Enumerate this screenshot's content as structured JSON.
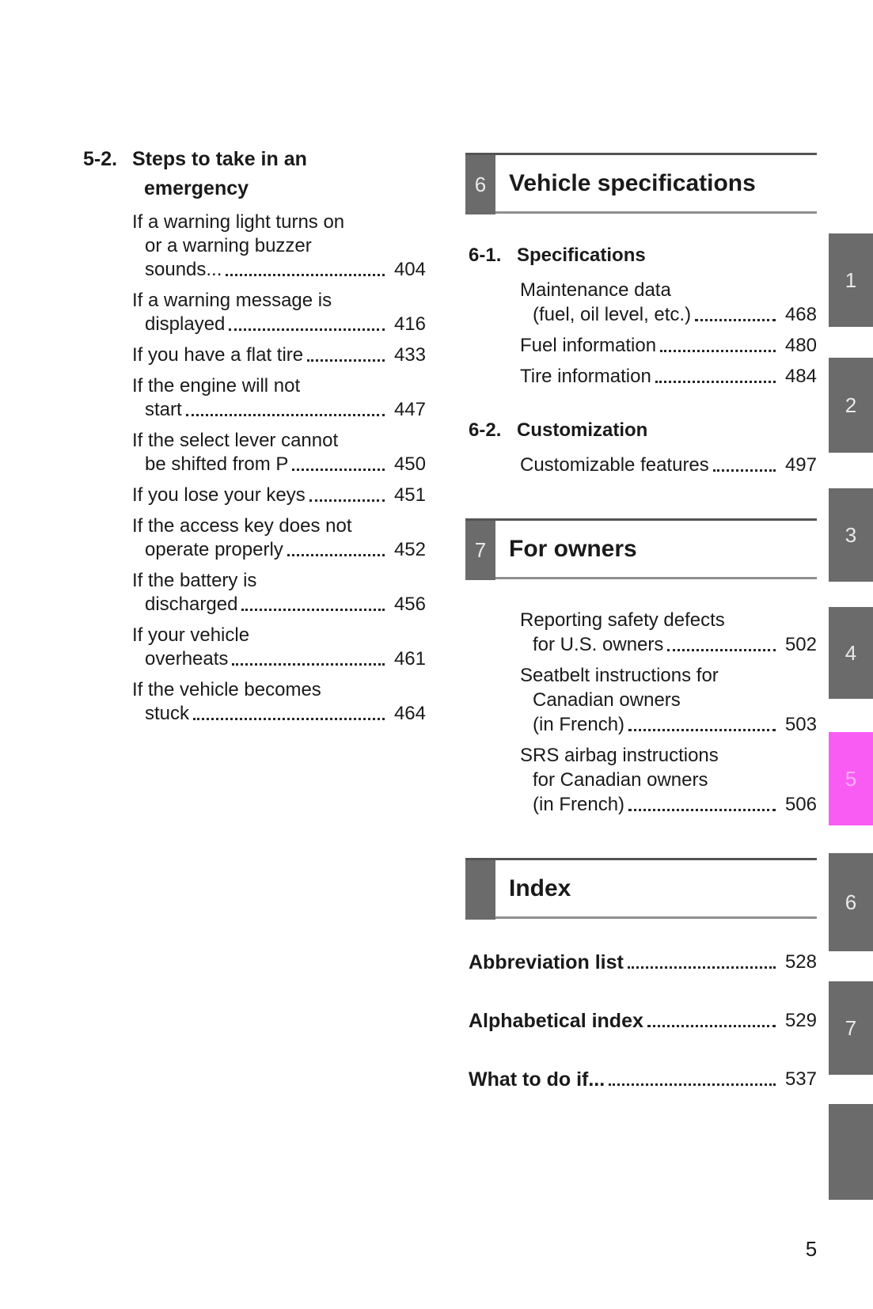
{
  "colors": {
    "tab_gray": "#6b6b6b",
    "tab_active_magenta": "#f95cf3",
    "tab_number_gray": "#e9e9e9",
    "tab_number_active": "#fdaef9",
    "chapter_box_gray": "#6b6b6b",
    "rule_top": "#545454",
    "rule_bottom": "#8f8f8f",
    "text": "#1a1a1a",
    "page_bg": "#ffffff"
  },
  "page": {
    "footer_page_number": "5"
  },
  "left_column": {
    "section_number": "5-2.",
    "section_title_lines": [
      "Steps to take in an",
      "emergency"
    ],
    "entries": [
      {
        "lines": [
          "If a warning light turns on",
          "or a warning buzzer"
        ],
        "last": "sounds...",
        "page": "404"
      },
      {
        "lines": [
          "If a warning message is"
        ],
        "last": "displayed",
        "page": "416"
      },
      {
        "lines": [],
        "last": "If you have a flat tire",
        "page": "433"
      },
      {
        "lines": [
          "If the engine will not"
        ],
        "last": "start",
        "page": "447"
      },
      {
        "lines": [
          "If the select lever cannot"
        ],
        "last": "be shifted from P",
        "page": "450"
      },
      {
        "lines": [],
        "last": "If you lose your keys",
        "page": "451"
      },
      {
        "lines": [
          "If the access key does not"
        ],
        "last": "operate properly",
        "page": "452"
      },
      {
        "lines": [
          "If the battery is"
        ],
        "last": "discharged",
        "page": "456"
      },
      {
        "lines": [
          "If your vehicle"
        ],
        "last": "overheats",
        "page": "461"
      },
      {
        "lines": [
          "If the vehicle becomes"
        ],
        "last": "stuck",
        "page": "464"
      }
    ]
  },
  "right_column": {
    "blocks": [
      {
        "type": "chapter",
        "number": "6",
        "title": "Vehicle specifications"
      },
      {
        "type": "subsection",
        "number": "6-1.",
        "title": "Specifications"
      },
      {
        "type": "entry",
        "lines": [
          "Maintenance data"
        ],
        "last": "(fuel, oil level, etc.)",
        "page": "468"
      },
      {
        "type": "entry",
        "lines": [],
        "last": "Fuel information",
        "page": "480"
      },
      {
        "type": "entry",
        "lines": [],
        "last": "Tire information",
        "page": "484"
      },
      {
        "type": "subsection",
        "number": "6-2.",
        "title": "Customization"
      },
      {
        "type": "entry",
        "lines": [],
        "last": "Customizable features",
        "page": "497"
      },
      {
        "type": "chapter",
        "number": "7",
        "title": "For owners"
      },
      {
        "type": "entry",
        "lines": [
          "Reporting safety defects"
        ],
        "last": "for U.S. owners",
        "page": "502"
      },
      {
        "type": "entry",
        "lines": [
          "Seatbelt instructions for",
          "Canadian owners"
        ],
        "last": "(in French)",
        "page": "503"
      },
      {
        "type": "entry",
        "lines": [
          "SRS airbag instructions",
          "for Canadian owners"
        ],
        "last": "(in French)",
        "page": "506"
      },
      {
        "type": "chapter",
        "number": "",
        "title": "Index"
      },
      {
        "type": "bold_entry",
        "last": "Abbreviation list",
        "page": "528"
      },
      {
        "type": "bold_entry",
        "last": "Alphabetical index",
        "page": "529"
      },
      {
        "type": "bold_entry",
        "last": "What to do if...",
        "page": "537"
      }
    ]
  },
  "tabs": {
    "items": [
      {
        "label": "1",
        "active": false
      },
      {
        "label": "2",
        "active": false
      },
      {
        "label": "3",
        "active": false
      },
      {
        "label": "4",
        "active": false
      },
      {
        "label": "5",
        "active": true
      },
      {
        "label": "6",
        "active": false
      },
      {
        "label": "7",
        "active": false
      },
      {
        "label": "",
        "active": false
      }
    ]
  }
}
